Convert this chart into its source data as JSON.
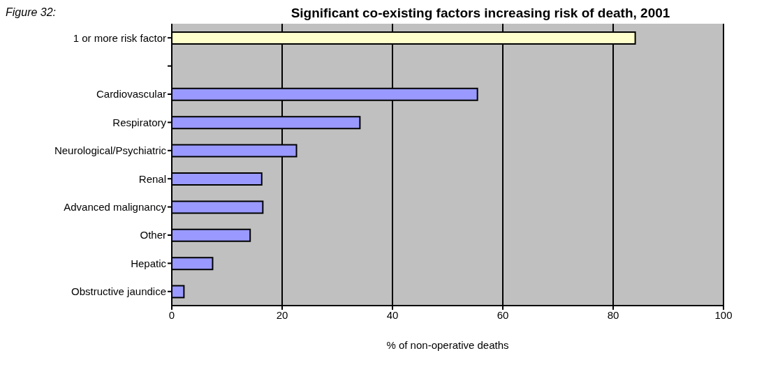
{
  "chart_data": {
    "type": "bar",
    "orientation": "horizontal",
    "title": "Significant co-existing factors increasing risk of death, 2001",
    "annotations": [
      "Figure 32:"
    ],
    "xlabel": "% of non-operative deaths",
    "categories": [
      "1 or more risk factor",
      null,
      "Cardiovascular",
      "Respiratory",
      "Neurological/Psychiatric",
      "Renal",
      "Advanced malignancy",
      "Other",
      "Hepatic",
      "Obstructive jaundice"
    ],
    "values": [
      84,
      null,
      55.4,
      34.1,
      22.6,
      16.3,
      16.5,
      14.2,
      7.4,
      2.2
    ],
    "colors": [
      "#ffffcc",
      "#9999ff",
      "#9999ff",
      "#9999ff",
      "#9999ff",
      "#9999ff",
      "#9999ff",
      "#9999ff",
      "#9999ff",
      "#9999ff"
    ],
    "xlim": [
      0,
      100
    ],
    "xticks": [
      0,
      20,
      40,
      60,
      80,
      100
    ],
    "grid": "x",
    "legend": false
  }
}
